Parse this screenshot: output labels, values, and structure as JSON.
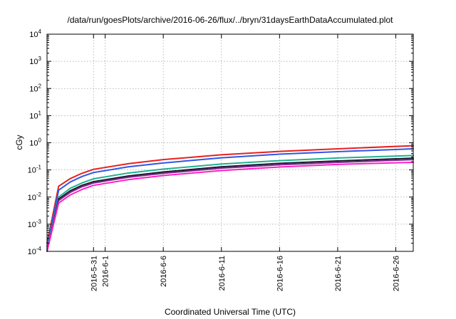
{
  "chart_data": {
    "type": "line",
    "title": "/data/run/goesPlots/archive/2016-06-26/flux/../bryn/31daysEarthDataAccumulated.plot",
    "xlabel": "Coordinated Universal Time (UTC)",
    "ylabel": "cGy",
    "y_scale": "log",
    "ylim": [
      0.0001,
      10000
    ],
    "xlim": [
      "2016-05-27",
      "2016-06-27.5"
    ],
    "grid": true,
    "legend": "none",
    "y_ticks": [
      {
        "value": 0.0001,
        "base": "10",
        "exp": "-4"
      },
      {
        "value": 0.001,
        "base": "10",
        "exp": "-3"
      },
      {
        "value": 0.01,
        "base": "10",
        "exp": "-2"
      },
      {
        "value": 0.1,
        "base": "10",
        "exp": "-1"
      },
      {
        "value": 1,
        "base": "10",
        "exp": "0"
      },
      {
        "value": 10,
        "base": "10",
        "exp": "1"
      },
      {
        "value": 100,
        "base": "10",
        "exp": "2"
      },
      {
        "value": 1000,
        "base": "10",
        "exp": "3"
      },
      {
        "value": 10000,
        "base": "10",
        "exp": "4"
      }
    ],
    "x_ticks": [
      "2016-5-31",
      "2016-6-1",
      "2016-6-6",
      "2016-6-11",
      "2016-6-16",
      "2016-6-21",
      "2016-6-26"
    ],
    "x": [
      "2016-05-27",
      "2016-05-28",
      "2016-05-29",
      "2016-05-30",
      "2016-05-31",
      "2016-06-03",
      "2016-06-06",
      "2016-06-11",
      "2016-06-16",
      "2016-06-21",
      "2016-06-27.5"
    ],
    "series": [
      {
        "color": "#e8201e",
        "values": [
          0.0002,
          0.025,
          0.048,
          0.075,
          0.105,
          0.17,
          0.24,
          0.36,
          0.48,
          0.6,
          0.78
        ]
      },
      {
        "color": "#2f56e8",
        "values": [
          0.00015,
          0.018,
          0.036,
          0.057,
          0.08,
          0.13,
          0.18,
          0.28,
          0.38,
          0.47,
          0.6
        ]
      },
      {
        "color": "#20b090",
        "values": [
          0.00012,
          0.01,
          0.021,
          0.033,
          0.047,
          0.077,
          0.107,
          0.165,
          0.22,
          0.275,
          0.34
        ]
      },
      {
        "color": "#1a1a2e",
        "values": [
          0.0001,
          0.0085,
          0.017,
          0.027,
          0.037,
          0.06,
          0.084,
          0.13,
          0.175,
          0.215,
          0.27
        ]
      },
      {
        "color": "#7a2a8a",
        "values": [
          0.0001,
          0.0075,
          0.015,
          0.024,
          0.033,
          0.054,
          0.075,
          0.116,
          0.155,
          0.19,
          0.24
        ]
      },
      {
        "color": "#ff1fc8",
        "values": [
          0.0001,
          0.006,
          0.012,
          0.019,
          0.027,
          0.044,
          0.062,
          0.095,
          0.128,
          0.16,
          0.19
        ]
      }
    ]
  }
}
